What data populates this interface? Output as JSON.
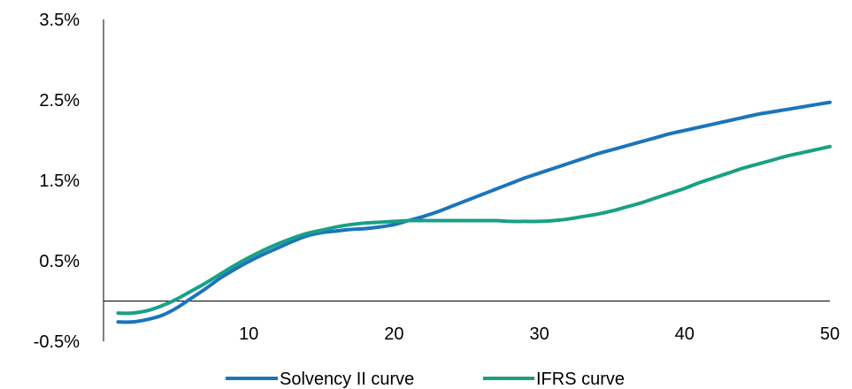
{
  "chart_data": {
    "type": "line",
    "title": "",
    "xlabel": "",
    "ylabel": "",
    "xlim": [
      0,
      50
    ],
    "ylim": [
      -0.5,
      3.5
    ],
    "grid": false,
    "legend_position": "bottom",
    "x_ticks": [
      10,
      20,
      30,
      40,
      50
    ],
    "x_tick_labels": [
      "10",
      "20",
      "30",
      "40",
      "50"
    ],
    "y_ticks": [
      -0.5,
      0.5,
      1.5,
      2.5,
      3.5
    ],
    "y_tick_labels": [
      "-0.5%",
      "0.5%",
      "1.5%",
      "2.5%",
      "3.5%"
    ],
    "series": [
      {
        "name": "Solvency II curve",
        "color": "#1b75bb",
        "x": [
          1,
          2,
          3,
          4,
          5,
          6,
          7,
          8,
          9,
          10,
          11,
          12,
          13,
          14,
          15,
          16,
          17,
          18,
          19,
          20,
          21,
          22,
          23,
          24,
          25,
          26,
          27,
          28,
          29,
          30,
          31,
          32,
          33,
          34,
          35,
          36,
          37,
          38,
          39,
          40,
          41,
          42,
          43,
          44,
          45,
          46,
          47,
          48,
          49,
          50
        ],
        "values": [
          -0.26,
          -0.26,
          -0.23,
          -0.18,
          -0.09,
          0.03,
          0.15,
          0.28,
          0.39,
          0.49,
          0.58,
          0.66,
          0.74,
          0.81,
          0.85,
          0.87,
          0.89,
          0.9,
          0.92,
          0.95,
          1.0,
          1.05,
          1.11,
          1.18,
          1.25,
          1.32,
          1.39,
          1.46,
          1.53,
          1.59,
          1.65,
          1.71,
          1.77,
          1.83,
          1.88,
          1.93,
          1.98,
          2.03,
          2.08,
          2.12,
          2.16,
          2.2,
          2.24,
          2.28,
          2.32,
          2.35,
          2.38,
          2.41,
          2.44,
          2.47
        ]
      },
      {
        "name": "IFRS curve",
        "color": "#19a085",
        "x": [
          1,
          2,
          3,
          4,
          5,
          6,
          7,
          8,
          9,
          10,
          11,
          12,
          13,
          14,
          15,
          16,
          17,
          18,
          19,
          20,
          21,
          22,
          23,
          24,
          25,
          26,
          27,
          28,
          29,
          30,
          31,
          32,
          33,
          34,
          35,
          36,
          37,
          38,
          39,
          40,
          41,
          42,
          43,
          44,
          45,
          46,
          47,
          48,
          49,
          50
        ],
        "values": [
          -0.15,
          -0.15,
          -0.12,
          -0.06,
          0.02,
          0.12,
          0.22,
          0.33,
          0.44,
          0.54,
          0.63,
          0.71,
          0.78,
          0.84,
          0.88,
          0.92,
          0.95,
          0.97,
          0.98,
          0.99,
          1.0,
          1.0,
          1.0,
          1.0,
          1.0,
          1.0,
          1.0,
          0.99,
          0.99,
          0.99,
          1.0,
          1.02,
          1.05,
          1.08,
          1.12,
          1.17,
          1.22,
          1.28,
          1.34,
          1.4,
          1.47,
          1.53,
          1.59,
          1.65,
          1.7,
          1.75,
          1.8,
          1.84,
          1.88,
          1.92
        ]
      }
    ]
  }
}
